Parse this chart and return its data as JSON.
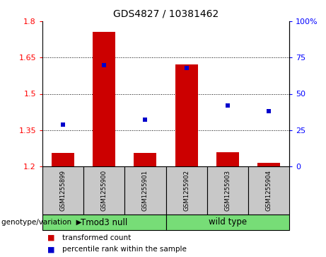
{
  "title": "GDS4827 / 10381462",
  "samples": [
    "GSM1255899",
    "GSM1255900",
    "GSM1255901",
    "GSM1255902",
    "GSM1255903",
    "GSM1255904"
  ],
  "bar_values": [
    1.255,
    1.755,
    1.255,
    1.62,
    1.26,
    1.215
  ],
  "bar_bottom": 1.2,
  "percentile_values": [
    29,
    70,
    32,
    68,
    42,
    38
  ],
  "bar_color": "#cc0000",
  "dot_color": "#0000cc",
  "ylim_left": [
    1.2,
    1.8
  ],
  "ylim_right": [
    0,
    100
  ],
  "yticks_left": [
    1.2,
    1.35,
    1.5,
    1.65,
    1.8
  ],
  "yticks_right": [
    0,
    25,
    50,
    75,
    100
  ],
  "ytick_labels_left": [
    "1.2",
    "1.35",
    "1.5",
    "1.65",
    "1.8"
  ],
  "ytick_labels_right": [
    "0",
    "25",
    "50",
    "75",
    "100%"
  ],
  "hlines": [
    1.35,
    1.5,
    1.65
  ],
  "groups": [
    {
      "label": "Tmod3 null",
      "start": 0,
      "end": 3
    },
    {
      "label": "wild type",
      "start": 3,
      "end": 6
    }
  ],
  "group_color": "#77dd77",
  "group_label_text": "genotype/variation",
  "legend_red_label": "transformed count",
  "legend_blue_label": "percentile rank within the sample",
  "bar_width": 0.55,
  "sample_box_color": "#c8c8c8",
  "plot_bg": "#ffffff",
  "fig_w": 4.61,
  "fig_h": 3.63,
  "dpi": 100
}
